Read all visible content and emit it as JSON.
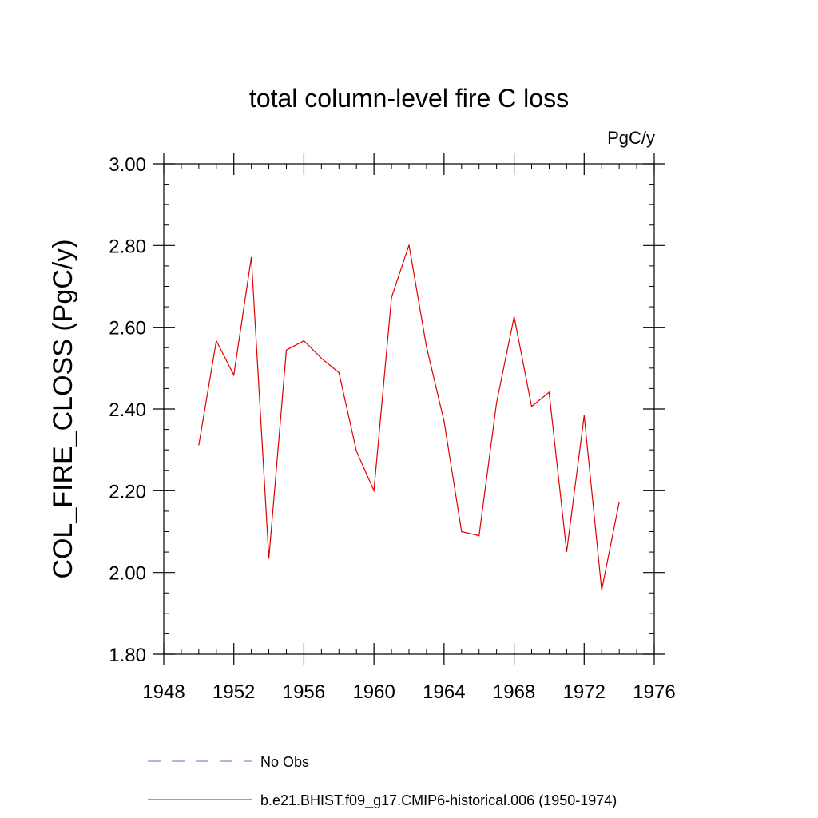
{
  "chart_data": {
    "type": "line",
    "title": "total column-level fire C loss",
    "units": "PgC/y",
    "ylabel": "COL_FIRE_CLOSS  (PgC/y)",
    "xlabel": "",
    "xlim": [
      1948,
      1976
    ],
    "ylim": [
      1.8,
      3.0
    ],
    "x_ticks": [
      1948,
      1952,
      1956,
      1960,
      1964,
      1968,
      1972,
      1976
    ],
    "x_tick_labels": [
      "1948",
      "1952",
      "1956",
      "1960",
      "1964",
      "1968",
      "1972",
      "1976"
    ],
    "y_ticks": [
      1.8,
      2.0,
      2.2,
      2.4,
      2.6,
      2.8,
      3.0
    ],
    "y_tick_labels": [
      "1.80",
      "2.00",
      "2.20",
      "2.40",
      "2.60",
      "2.80",
      "3.00"
    ],
    "grid": false,
    "legend_position": "bottom",
    "legend": [
      {
        "label": "No Obs",
        "color": "#6a6ab0",
        "style": "dashed"
      },
      {
        "label": "b.e21.BHIST.f09_g17.CMIP6-historical.006 (1950-1974)",
        "color": "#e00000",
        "style": "solid"
      }
    ],
    "series": [
      {
        "name": "b.e21.BHIST.f09_g17.CMIP6-historical.006 (1950-1974)",
        "color": "#e00000",
        "x": [
          1950,
          1951,
          1952,
          1953,
          1954,
          1955,
          1956,
          1957,
          1958,
          1959,
          1960,
          1961,
          1962,
          1963,
          1964,
          1965,
          1966,
          1967,
          1968,
          1969,
          1970,
          1971,
          1972,
          1973,
          1974
        ],
        "values": [
          2.312,
          2.567,
          2.483,
          2.771,
          2.035,
          2.544,
          2.567,
          2.524,
          2.489,
          2.297,
          2.2,
          2.673,
          2.801,
          2.552,
          2.37,
          2.1,
          2.09,
          2.415,
          2.626,
          2.406,
          2.441,
          2.051,
          2.384,
          1.957,
          2.172
        ]
      }
    ]
  }
}
